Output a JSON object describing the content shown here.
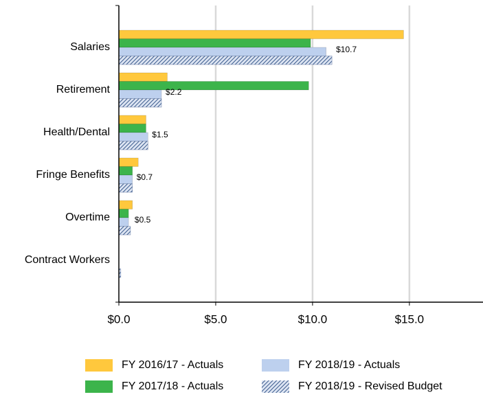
{
  "chart_data": {
    "type": "hbar",
    "categories": [
      "Salaries",
      "Retirement",
      "Health/Dental",
      "Fringe Benefits",
      "Overtime",
      "Contract Workers"
    ],
    "series": [
      {
        "name": "FY 2016/17 - Actuals",
        "color": "#FFC83D",
        "values": [
          14.7,
          2.5,
          1.4,
          1.0,
          0.7,
          0
        ]
      },
      {
        "name": "FY 2017/18 - Actuals",
        "color": "#3CB44B",
        "values": [
          9.9,
          9.8,
          1.4,
          0.7,
          0.5,
          0
        ]
      },
      {
        "name": "FY 2018/19 - Actuals",
        "color": "#BDD0EE",
        "values": [
          10.7,
          2.2,
          1.5,
          0.7,
          0.5,
          0
        ],
        "value_labels": [
          "$10.7",
          "$2.2",
          "$1.5",
          "$0.7",
          "$0.5",
          null
        ]
      },
      {
        "name": "FY 2018/19 - Revised Budget",
        "color": "#3A5A8C",
        "pattern": "hatch",
        "values": [
          11.0,
          2.2,
          1.5,
          0.7,
          0.6,
          0.1
        ]
      }
    ],
    "xlim": [
      0,
      18.8
    ],
    "xticks": [
      {
        "value": 0,
        "label": "$0.0"
      },
      {
        "value": 5,
        "label": "$5.0"
      },
      {
        "value": 10,
        "label": "$10.0"
      },
      {
        "value": 15,
        "label": "$15.0"
      }
    ],
    "grid": true,
    "legend": "bottom"
  }
}
